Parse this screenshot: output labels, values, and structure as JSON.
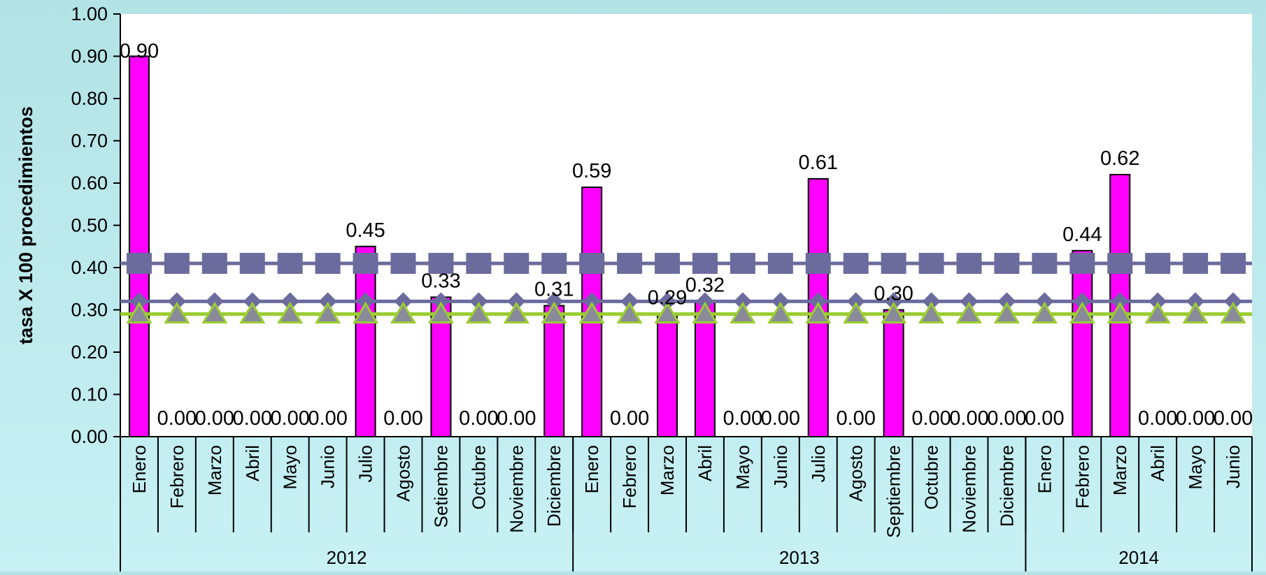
{
  "chart_data": {
    "type": "bar",
    "ylabel": "tasa X 100 procedimientos",
    "ylim": [
      0,
      1
    ],
    "yticks": [
      "0.00",
      "0.10",
      "0.20",
      "0.30",
      "0.40",
      "0.50",
      "0.60",
      "0.70",
      "0.80",
      "0.90",
      "1.00"
    ],
    "categories": [
      "Enero",
      "Febrero",
      "Marzo",
      "Abril",
      "Mayo",
      "Junio",
      "Julio",
      "Agosto",
      "Setiembre",
      "Octubre",
      "Noviembre",
      "Diciembre",
      "Enero",
      "Febrero",
      "Marzo",
      "Abril",
      "Mayo",
      "Junio",
      "Julio",
      "Agosto",
      "Septiembre",
      "Octubre",
      "Noviembre",
      "Diciembre",
      "Enero",
      "Febrero",
      "Marzo",
      "Abril",
      "Mayo",
      "Junio"
    ],
    "years": [
      {
        "label": "2012",
        "count": 12
      },
      {
        "label": "2013",
        "count": 12
      },
      {
        "label": "2014",
        "count": 6
      }
    ],
    "values": [
      0.9,
      0,
      0,
      0,
      0,
      0,
      0.45,
      0,
      0.33,
      0,
      0,
      0.31,
      0.59,
      0,
      0.29,
      0.32,
      0,
      0,
      0.61,
      0,
      0.3,
      0,
      0,
      0,
      0,
      0.44,
      0.62,
      0,
      0,
      0
    ],
    "bar_labels": [
      "0.90",
      "0.00",
      "0.00",
      "0.00",
      "0.00",
      "0.00",
      "0.45",
      "0.00",
      "0.33",
      "0.00",
      "0.00",
      "0.31",
      "0.59",
      "0.00",
      "0.29",
      "0.32",
      "0.00",
      "0.00",
      "0.61",
      "0.00",
      "0.30",
      "0.00",
      "0.00",
      "0.00",
      "0.00",
      "0.44",
      "0.62",
      "0.00",
      "0.00",
      "0.00"
    ],
    "lines": [
      {
        "value": 0.41,
        "marker": "square",
        "color": "#6b6b9e"
      },
      {
        "value": 0.32,
        "marker": "diamond",
        "color": "#6b6b9e"
      },
      {
        "value": 0.29,
        "marker": "triangle",
        "color": "#9acd32",
        "fill": "#8a8a9a"
      }
    ],
    "bar_color": "#ff00ff",
    "grid": false
  }
}
